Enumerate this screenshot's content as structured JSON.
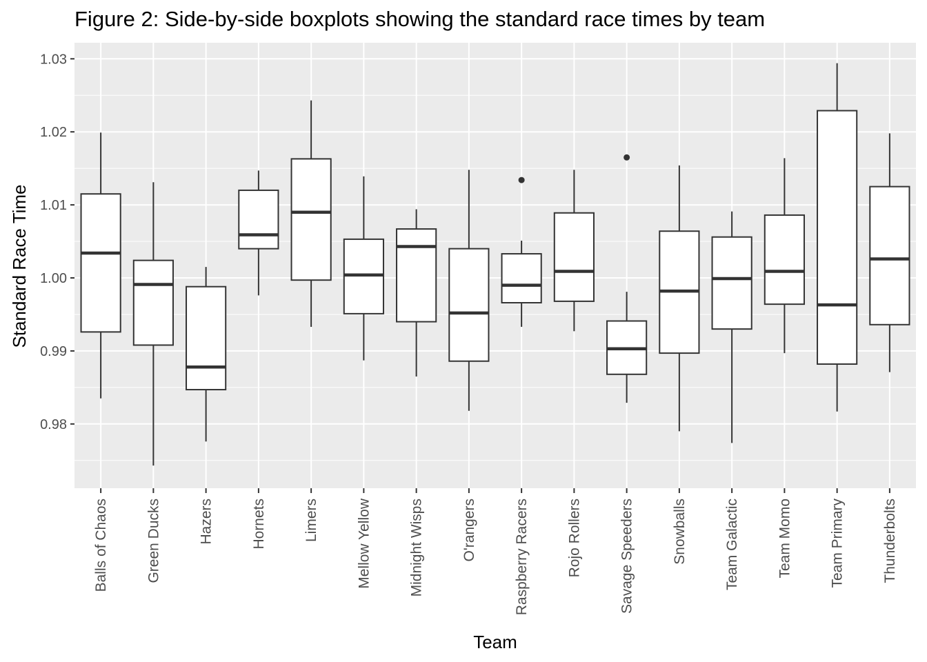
{
  "chart_data": {
    "type": "boxplot",
    "title": "Figure 2: Side-by-side boxplots showing the standard race times by team",
    "xlabel": "Team",
    "ylabel": "Standard Race Time",
    "ylim": [
      0.9712,
      1.0322
    ],
    "yticks": [
      0.98,
      0.99,
      1.0,
      1.01,
      1.02,
      1.03
    ],
    "ytick_labels": [
      "0.98",
      "0.99",
      "1.00",
      "1.01",
      "1.02",
      "1.03"
    ],
    "grid": true,
    "panel_background": "#EBEBEB",
    "categories": [
      "Balls of Chaos",
      "Green Ducks",
      "Hazers",
      "Hornets",
      "Limers",
      "Mellow Yellow",
      "Midnight Wisps",
      "O'rangers",
      "Raspberry Racers",
      "Rojo Rollers",
      "Savage Speeders",
      "Snowballs",
      "Team Galactic",
      "Team Momo",
      "Team Primary",
      "Thunderbolts"
    ],
    "boxes": [
      {
        "whisker_low": 0.9835,
        "q1": 0.9926,
        "median": 1.0034,
        "q3": 1.0115,
        "whisker_high": 1.0199,
        "outliers": []
      },
      {
        "whisker_low": 0.9743,
        "q1": 0.9908,
        "median": 0.9991,
        "q3": 1.0024,
        "whisker_high": 1.0131,
        "outliers": []
      },
      {
        "whisker_low": 0.9776,
        "q1": 0.9847,
        "median": 0.9878,
        "q3": 0.9988,
        "whisker_high": 1.0015,
        "outliers": []
      },
      {
        "whisker_low": 0.9976,
        "q1": 1.004,
        "median": 1.0059,
        "q3": 1.012,
        "whisker_high": 1.0147,
        "outliers": []
      },
      {
        "whisker_low": 0.9933,
        "q1": 0.9997,
        "median": 1.009,
        "q3": 1.0163,
        "whisker_high": 1.0243,
        "outliers": []
      },
      {
        "whisker_low": 0.9887,
        "q1": 0.9951,
        "median": 1.0004,
        "q3": 1.0053,
        "whisker_high": 1.0139,
        "outliers": []
      },
      {
        "whisker_low": 0.9865,
        "q1": 0.994,
        "median": 1.0043,
        "q3": 1.0067,
        "whisker_high": 1.0094,
        "outliers": []
      },
      {
        "whisker_low": 0.9818,
        "q1": 0.9886,
        "median": 0.9952,
        "q3": 1.004,
        "whisker_high": 1.0148,
        "outliers": []
      },
      {
        "whisker_low": 0.9933,
        "q1": 0.9966,
        "median": 0.999,
        "q3": 1.0033,
        "whisker_high": 1.0051,
        "outliers": [
          1.0134
        ]
      },
      {
        "whisker_low": 0.9927,
        "q1": 0.9968,
        "median": 1.0009,
        "q3": 1.0089,
        "whisker_high": 1.0148,
        "outliers": []
      },
      {
        "whisker_low": 0.9829,
        "q1": 0.9868,
        "median": 0.9903,
        "q3": 0.9941,
        "whisker_high": 0.9981,
        "outliers": [
          1.0165
        ]
      },
      {
        "whisker_low": 0.979,
        "q1": 0.9897,
        "median": 0.9982,
        "q3": 1.0064,
        "whisker_high": 1.0154,
        "outliers": []
      },
      {
        "whisker_low": 0.9774,
        "q1": 0.993,
        "median": 0.9999,
        "q3": 1.0056,
        "whisker_high": 1.0091,
        "outliers": []
      },
      {
        "whisker_low": 0.9897,
        "q1": 0.9964,
        "median": 1.0009,
        "q3": 1.0086,
        "whisker_high": 1.0164,
        "outliers": []
      },
      {
        "whisker_low": 0.9817,
        "q1": 0.9882,
        "median": 0.9963,
        "q3": 1.0229,
        "whisker_high": 1.0294,
        "outliers": []
      },
      {
        "whisker_low": 0.9871,
        "q1": 0.9936,
        "median": 1.0026,
        "q3": 1.0125,
        "whisker_high": 1.0198,
        "outliers": []
      }
    ]
  }
}
